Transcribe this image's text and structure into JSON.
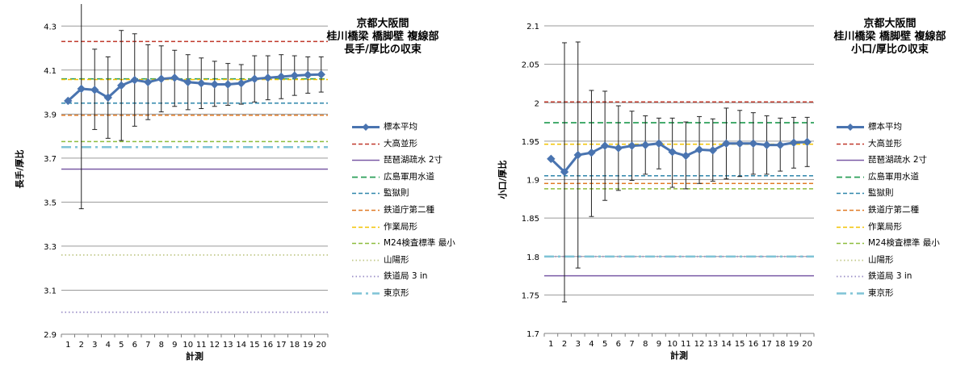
{
  "chart_data": [
    {
      "type": "line",
      "title": [
        "京都大阪間",
        "桂川橋梁 橋脚壁 複線部",
        "長手/厚比の収束"
      ],
      "xlabel": "計測",
      "ylabel": "長手/厚比",
      "x": [
        1,
        2,
        3,
        4,
        5,
        6,
        7,
        8,
        9,
        10,
        11,
        12,
        13,
        14,
        15,
        16,
        17,
        18,
        19,
        20
      ],
      "ylim": [
        2.9,
        4.4
      ],
      "yticks": [
        "2.9",
        "3.1",
        "3.3",
        "3.5",
        "3.7",
        "3.9",
        "4.1",
        "4.3"
      ],
      "ytick_values": [
        2.9,
        3.1,
        3.3,
        3.5,
        3.7,
        3.9,
        4.1,
        4.3
      ],
      "grid": true,
      "legend_position": "right",
      "series": [
        {
          "name": "標本平均",
          "kind": "mean",
          "color": "#4a74b0",
          "values": [
            3.96,
            4.015,
            4.01,
            3.975,
            4.03,
            4.055,
            4.045,
            4.06,
            4.065,
            4.045,
            4.04,
            4.035,
            4.035,
            4.04,
            4.06,
            4.065,
            4.07,
            4.075,
            4.078,
            4.08
          ],
          "err_low": [
            3.96,
            3.47,
            3.83,
            3.79,
            3.78,
            3.845,
            3.875,
            3.91,
            3.935,
            3.92,
            3.925,
            3.935,
            3.94,
            3.945,
            3.955,
            3.965,
            3.97,
            3.985,
            3.995,
            4.0
          ],
          "err_high": [
            3.96,
            4.4,
            4.195,
            4.16,
            4.28,
            4.265,
            4.215,
            4.21,
            4.19,
            4.17,
            4.155,
            4.14,
            4.13,
            4.125,
            4.165,
            4.165,
            4.17,
            4.165,
            4.16,
            4.16
          ]
        },
        {
          "name": "大高並形",
          "style": "dash",
          "color": "#c0392b",
          "value": 4.23
        },
        {
          "name": "琵琶湖疏水 2寸",
          "style": "solid",
          "color": "#7a5aa6",
          "value": 3.65
        },
        {
          "name": "広島軍用水道",
          "style": "longdash",
          "color": "#2ca05a",
          "value": 4.06
        },
        {
          "name": "監獄則",
          "style": "dash",
          "color": "#2e86ab",
          "value": 3.95
        },
        {
          "name": "鉄道庁第二種",
          "style": "dash",
          "color": "#e07b27",
          "value": 3.895
        },
        {
          "name": "作業局形",
          "style": "dash",
          "color": "#f2c200",
          "value": 4.057
        },
        {
          "name": "M24検査標準 最小",
          "style": "dash",
          "color": "#8dbd3e",
          "value": 3.775
        },
        {
          "name": "山陽形",
          "style": "dot",
          "color": "#c2c98a",
          "value": 3.26
        },
        {
          "name": "鉄道局 3 in",
          "style": "dot",
          "color": "#9b8fc7",
          "value": 3.0
        },
        {
          "name": "東京形",
          "style": "dashdot",
          "color": "#7fc3d6",
          "value": 3.75
        }
      ]
    },
    {
      "type": "line",
      "title": [
        "京都大阪間",
        "桂川橋梁 橋脚壁 複線部",
        "小口/厚比の収束"
      ],
      "xlabel": "計測",
      "ylabel": "小口/厚比",
      "x": [
        1,
        2,
        3,
        4,
        5,
        6,
        7,
        8,
        9,
        10,
        11,
        12,
        13,
        14,
        15,
        16,
        17,
        18,
        19,
        20
      ],
      "ylim": [
        1.7,
        2.1
      ],
      "yticks": [
        "1.7",
        "1.75",
        "1.8",
        "1.85",
        "1.9",
        "1.95",
        "2",
        "2.05",
        "2.1"
      ],
      "ytick_values": [
        1.7,
        1.75,
        1.8,
        1.85,
        1.9,
        1.95,
        2.0,
        2.05,
        2.1
      ],
      "grid": true,
      "legend_position": "right",
      "series": [
        {
          "name": "標本平均",
          "kind": "mean",
          "color": "#4a74b0",
          "values": [
            1.927,
            1.91,
            1.932,
            1.935,
            1.944,
            1.941,
            1.944,
            1.945,
            1.947,
            1.936,
            1.931,
            1.939,
            1.938,
            1.947,
            1.947,
            1.947,
            1.945,
            1.945,
            1.948,
            1.949
          ],
          "err_low": [
            1.927,
            1.741,
            1.785,
            1.852,
            1.873,
            1.886,
            1.899,
            1.907,
            1.914,
            1.89,
            1.888,
            1.895,
            1.898,
            1.901,
            1.904,
            1.907,
            1.907,
            1.911,
            1.915,
            1.917
          ],
          "err_high": [
            1.927,
            2.078,
            2.079,
            2.016,
            2.015,
            1.996,
            1.989,
            1.983,
            1.98,
            1.98,
            1.975,
            1.982,
            1.979,
            1.993,
            1.99,
            1.987,
            1.983,
            1.98,
            1.981,
            1.981
          ]
        },
        {
          "name": "大高並形",
          "style": "dash",
          "color": "#c0392b",
          "value": 2.001
        },
        {
          "name": "琵琶湖疏水 2寸",
          "style": "solid",
          "color": "#7a5aa6",
          "value": 1.775
        },
        {
          "name": "広島軍用水道",
          "style": "longdash",
          "color": "#2ca05a",
          "value": 1.974
        },
        {
          "name": "監獄則",
          "style": "dash",
          "color": "#2e86ab",
          "value": 1.905
        },
        {
          "name": "鉄道庁第二種",
          "style": "dash",
          "color": "#e07b27",
          "value": 1.895
        },
        {
          "name": "作業局形",
          "style": "dash",
          "color": "#f2c200",
          "value": 1.946
        },
        {
          "name": "M24検査標準 最小",
          "style": "dash",
          "color": "#8dbd3e",
          "value": 1.888
        },
        {
          "name": "山陽形",
          "style": "dot",
          "color": "#c2c98a",
          "value": 1.8
        },
        {
          "name": "鉄道局 3 in",
          "style": "dot",
          "color": "#9b8fc7",
          "value": 1.8
        },
        {
          "name": "東京形",
          "style": "dashdot",
          "color": "#7fc3d6",
          "value": 1.8
        }
      ]
    }
  ]
}
